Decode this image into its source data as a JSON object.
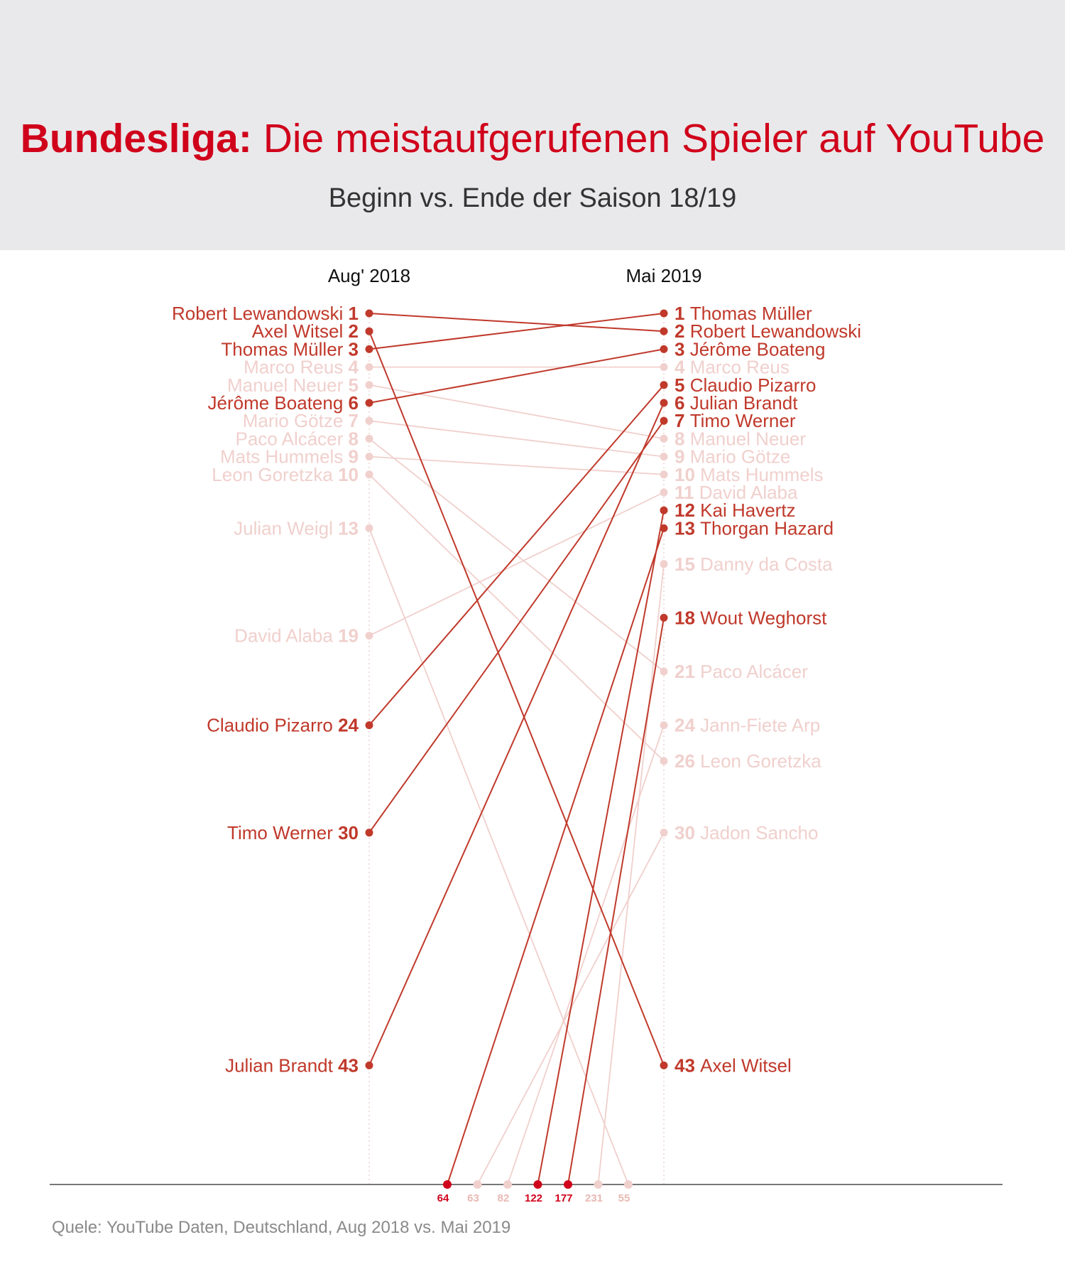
{
  "header": {
    "title_lead": "Bundesliga:",
    "title_rest": " Die meistaufgerufenen Spieler auf YouTube",
    "subtitle": "Beginn vs. Ende der Saison 18/19"
  },
  "footer": {
    "source": "Quele: YouTube Daten, Deutschland, Aug 2018 vs. Mai 2019"
  },
  "colors": {
    "highlight": "#c0392b",
    "faded": "#f0d0cd",
    "axis_line": "#777777",
    "bottom_label_highlight": "#d0021b"
  },
  "chart_data": {
    "type": "slope",
    "title": "Bundesliga: Die meistaufgerufenen Spieler auf YouTube",
    "subtitle": "Beginn vs. Ende der Saison 18/19",
    "columns": [
      "Aug' 2018",
      "Mai 2019"
    ],
    "y_axis": "rank (1 = top)",
    "rank_range": [
      1,
      43
    ],
    "players": [
      {
        "name": "Robert Lewandowski",
        "aug2018": 1,
        "mai2019": 2,
        "highlight": true
      },
      {
        "name": "Axel Witsel",
        "aug2018": 2,
        "mai2019": 43,
        "highlight": true
      },
      {
        "name": "Thomas Müller",
        "aug2018": 3,
        "mai2019": 1,
        "highlight": true
      },
      {
        "name": "Marco Reus",
        "aug2018": 4,
        "mai2019": 4,
        "highlight": false
      },
      {
        "name": "Manuel Neuer",
        "aug2018": 5,
        "mai2019": 8,
        "highlight": false
      },
      {
        "name": "Jérôme Boateng",
        "aug2018": 6,
        "mai2019": 3,
        "highlight": true
      },
      {
        "name": "Mario Götze",
        "aug2018": 7,
        "mai2019": 9,
        "highlight": false
      },
      {
        "name": "Paco Alcácer",
        "aug2018": 8,
        "mai2019": 21,
        "highlight": false
      },
      {
        "name": "Mats Hummels",
        "aug2018": 9,
        "mai2019": 10,
        "highlight": false
      },
      {
        "name": "Leon Goretzka",
        "aug2018": 10,
        "mai2019": 26,
        "highlight": false
      },
      {
        "name": "Julian Weigl",
        "aug2018": 13,
        "mai2019": 55,
        "highlight": false
      },
      {
        "name": "David Alaba",
        "aug2018": 19,
        "mai2019": 11,
        "highlight": false
      },
      {
        "name": "Claudio Pizarro",
        "aug2018": 24,
        "mai2019": 5,
        "highlight": true
      },
      {
        "name": "Timo Werner",
        "aug2018": 30,
        "mai2019": 7,
        "highlight": true
      },
      {
        "name": "Julian Brandt",
        "aug2018": 43,
        "mai2019": 6,
        "highlight": true
      },
      {
        "name": "Kai Havertz",
        "aug2018": 122,
        "mai2019": 12,
        "highlight": true
      },
      {
        "name": "Thorgan Hazard",
        "aug2018": 64,
        "mai2019": 13,
        "highlight": true
      },
      {
        "name": "Danny da Costa",
        "aug2018": 231,
        "mai2019": 15,
        "highlight": false
      },
      {
        "name": "Wout Weghorst",
        "aug2018": 177,
        "mai2019": 18,
        "highlight": true
      },
      {
        "name": "Jann-Fiete Arp",
        "aug2018": 82,
        "mai2019": 24,
        "highlight": false
      },
      {
        "name": "Jadon Sancho",
        "aug2018": 63,
        "mai2019": 30,
        "highlight": false
      }
    ],
    "bottom_ranks": [
      {
        "rank": 64,
        "highlight": true
      },
      {
        "rank": 63,
        "highlight": false
      },
      {
        "rank": 82,
        "highlight": false
      },
      {
        "rank": 122,
        "highlight": true
      },
      {
        "rank": 177,
        "highlight": true
      },
      {
        "rank": 231,
        "highlight": false
      },
      {
        "rank": 55,
        "highlight": false
      }
    ]
  }
}
